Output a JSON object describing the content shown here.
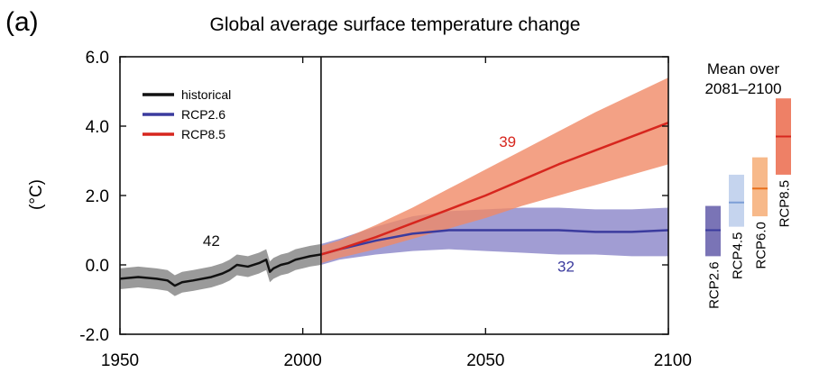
{
  "panel_label": "(a)",
  "chart_data": {
    "type": "line",
    "title": "Global average surface temperature change",
    "xlabel": "",
    "ylabel": "(°C)",
    "xlim": [
      1950,
      2100
    ],
    "ylim": [
      -2.0,
      6.0
    ],
    "x_ticks": [
      "1950",
      "2000",
      "2050",
      "2100"
    ],
    "y_ticks": [
      "-2.0",
      "0.0",
      "2.0",
      "4.0",
      "6.0"
    ],
    "divider_year": 2005,
    "grid": false,
    "legend_position": "top-left",
    "series": [
      {
        "name": "historical",
        "color": "#111111",
        "band_color": "#9a9a9a",
        "x": [
          1950,
          1955,
          1960,
          1963,
          1965,
          1967,
          1970,
          1975,
          1978,
          1980,
          1982,
          1985,
          1988,
          1990,
          1991,
          1992,
          1994,
          1996,
          1998,
          2000,
          2002,
          2005
        ],
        "mean": [
          -0.4,
          -0.35,
          -0.4,
          -0.45,
          -0.6,
          -0.5,
          -0.45,
          -0.35,
          -0.25,
          -0.15,
          0.0,
          -0.05,
          0.05,
          0.15,
          -0.2,
          -0.1,
          0.0,
          0.05,
          0.15,
          0.2,
          0.25,
          0.3
        ],
        "lower": [
          -0.7,
          -0.65,
          -0.7,
          -0.75,
          -0.9,
          -0.8,
          -0.75,
          -0.65,
          -0.55,
          -0.45,
          -0.3,
          -0.35,
          -0.25,
          -0.15,
          -0.5,
          -0.4,
          -0.3,
          -0.25,
          -0.15,
          -0.1,
          -0.05,
          0.0
        ],
        "upper": [
          -0.1,
          -0.05,
          -0.1,
          -0.15,
          -0.3,
          -0.2,
          -0.15,
          -0.05,
          0.05,
          0.15,
          0.3,
          0.25,
          0.35,
          0.45,
          0.1,
          0.2,
          0.3,
          0.35,
          0.45,
          0.5,
          0.55,
          0.6
        ]
      },
      {
        "name": "RCP2.6",
        "color": "#3b3b9e",
        "band_color": "#8a85c8",
        "x": [
          2005,
          2010,
          2020,
          2030,
          2040,
          2050,
          2060,
          2070,
          2080,
          2090,
          2100
        ],
        "mean": [
          0.3,
          0.45,
          0.7,
          0.9,
          1.0,
          1.0,
          1.0,
          1.0,
          0.95,
          0.95,
          1.0
        ],
        "lower": [
          0.0,
          0.15,
          0.3,
          0.4,
          0.45,
          0.4,
          0.35,
          0.3,
          0.3,
          0.25,
          0.25
        ],
        "upper": [
          0.6,
          0.75,
          1.1,
          1.4,
          1.55,
          1.6,
          1.65,
          1.65,
          1.6,
          1.6,
          1.65
        ]
      },
      {
        "name": "RCP8.5",
        "color": "#d7261e",
        "band_color": "#f08a66",
        "x": [
          2005,
          2010,
          2020,
          2030,
          2040,
          2050,
          2060,
          2070,
          2080,
          2090,
          2100
        ],
        "mean": [
          0.3,
          0.45,
          0.8,
          1.2,
          1.6,
          2.0,
          2.45,
          2.9,
          3.3,
          3.7,
          4.1
        ],
        "lower": [
          0.05,
          0.2,
          0.45,
          0.75,
          1.05,
          1.35,
          1.7,
          2.0,
          2.3,
          2.6,
          2.9
        ],
        "upper": [
          0.55,
          0.7,
          1.15,
          1.65,
          2.2,
          2.75,
          3.3,
          3.85,
          4.4,
          4.9,
          5.4
        ]
      }
    ],
    "annotations": [
      {
        "text": "42",
        "x": 1975,
        "y": 0.55,
        "color": "#111111"
      },
      {
        "text": "39",
        "x": 2056,
        "y": 3.4,
        "color": "#d7261e"
      },
      {
        "text": "32",
        "x": 2072,
        "y": -0.2,
        "color": "#3b3b9e"
      }
    ],
    "side_panel": {
      "title_lines": [
        "Mean over",
        "2081–2100"
      ],
      "bars": [
        {
          "label": "RCP2.6",
          "low": 0.25,
          "high": 1.7,
          "mean": 1.0,
          "color": "#7a74b6",
          "line_color": "#3b3b9e"
        },
        {
          "label": "RCP4.5",
          "low": 1.1,
          "high": 2.6,
          "mean": 1.8,
          "color": "#c5d4ee",
          "line_color": "#7d9ed6"
        },
        {
          "label": "RCP6.0",
          "low": 1.4,
          "high": 3.1,
          "mean": 2.2,
          "color": "#f7b98a",
          "line_color": "#e8701c"
        },
        {
          "label": "RCP8.5",
          "low": 2.6,
          "high": 4.8,
          "mean": 3.7,
          "color": "#ee8066",
          "line_color": "#d7261e"
        }
      ]
    }
  }
}
